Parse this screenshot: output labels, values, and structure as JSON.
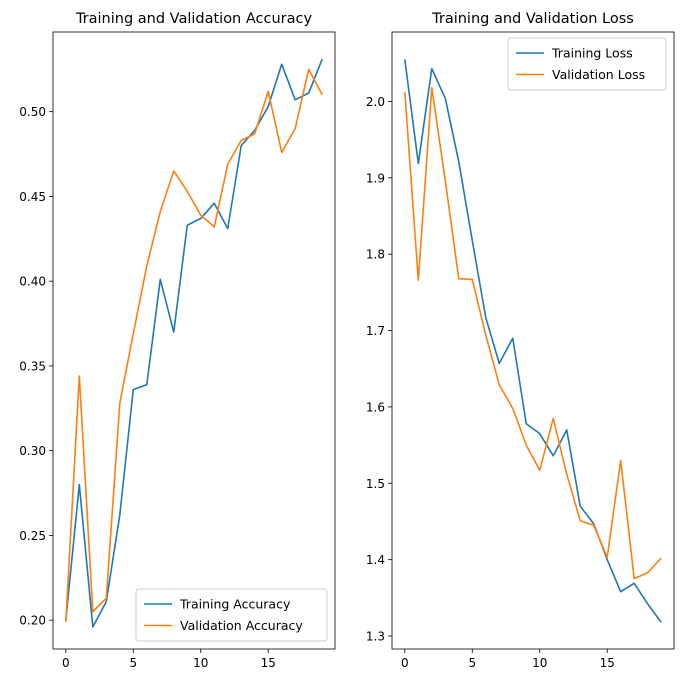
{
  "chart_data": [
    {
      "type": "line",
      "title": "Training and Validation Accuracy",
      "xlabel": "",
      "ylabel": "",
      "xlim": [
        -0.95,
        19.95
      ],
      "ylim": [
        0.183,
        0.547
      ],
      "xticks": [
        0,
        5,
        10,
        15
      ],
      "yticks": [
        0.2,
        0.25,
        0.3,
        0.35,
        0.4,
        0.45,
        0.5
      ],
      "ytick_labels": [
        "0.20",
        "0.25",
        "0.30",
        "0.35",
        "0.40",
        "0.45",
        "0.50"
      ],
      "grid": false,
      "legend": "lower right",
      "x": [
        0,
        1,
        2,
        3,
        4,
        5,
        6,
        7,
        8,
        9,
        10,
        11,
        12,
        13,
        14,
        15,
        16,
        17,
        18,
        19
      ],
      "series": [
        {
          "name": "Training Accuracy",
          "color": "#1f77b4",
          "values": [
            0.2,
            0.28,
            0.196,
            0.211,
            0.262,
            0.336,
            0.339,
            0.401,
            0.37,
            0.433,
            0.437,
            0.446,
            0.431,
            0.48,
            0.489,
            0.503,
            0.528,
            0.507,
            0.511,
            0.531
          ]
        },
        {
          "name": "Validation Accuracy",
          "color": "#ff7f0e",
          "values": [
            0.199,
            0.344,
            0.205,
            0.213,
            0.328,
            0.369,
            0.409,
            0.441,
            0.465,
            0.453,
            0.439,
            0.432,
            0.469,
            0.483,
            0.487,
            0.512,
            0.476,
            0.49,
            0.525,
            0.51
          ]
        }
      ]
    },
    {
      "type": "line",
      "title": "Training and Validation Loss",
      "xlabel": "",
      "ylabel": "",
      "xlim": [
        -0.95,
        19.95
      ],
      "ylim": [
        1.283,
        2.091
      ],
      "xticks": [
        0,
        5,
        10,
        15
      ],
      "yticks": [
        1.3,
        1.4,
        1.5,
        1.6,
        1.7,
        1.8,
        1.9,
        2.0
      ],
      "ytick_labels": [
        "1.3",
        "1.4",
        "1.5",
        "1.6",
        "1.7",
        "1.8",
        "1.9",
        "2.0"
      ],
      "grid": false,
      "legend": "upper right",
      "x": [
        0,
        1,
        2,
        3,
        4,
        5,
        6,
        7,
        8,
        9,
        10,
        11,
        12,
        13,
        14,
        15,
        16,
        17,
        18,
        19
      ],
      "series": [
        {
          "name": "Training Loss",
          "color": "#1f77b4",
          "values": [
            2.055,
            1.919,
            2.043,
            2.004,
            1.921,
            1.818,
            1.717,
            1.657,
            1.69,
            1.578,
            1.565,
            1.536,
            1.57,
            1.47,
            1.447,
            1.4,
            1.358,
            1.369,
            1.342,
            1.318
          ]
        },
        {
          "name": "Validation Loss",
          "color": "#ff7f0e",
          "values": [
            2.012,
            1.766,
            2.018,
            1.896,
            1.768,
            1.767,
            1.694,
            1.629,
            1.598,
            1.55,
            1.517,
            1.585,
            1.512,
            1.451,
            1.445,
            1.403,
            1.53,
            1.375,
            1.383,
            1.402
          ]
        }
      ]
    }
  ]
}
